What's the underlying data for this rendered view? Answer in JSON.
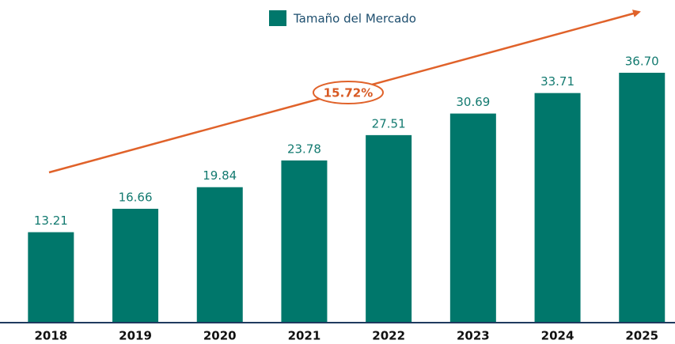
{
  "chart_data": {
    "type": "bar",
    "categories": [
      "2018",
      "2019",
      "2020",
      "2021",
      "2022",
      "2023",
      "2024",
      "2025"
    ],
    "series": [
      {
        "name": "Tamaño del Mercado",
        "color": "#00776b",
        "values": [
          13.21,
          16.66,
          19.84,
          23.78,
          27.51,
          30.69,
          33.71,
          36.7
        ],
        "value_labels": [
          "13.21",
          "16.66",
          "19.84",
          "23.78",
          "27.51",
          "30.69",
          "33.71",
          "36.70"
        ]
      }
    ],
    "annotation": "15.72%"
  }
}
